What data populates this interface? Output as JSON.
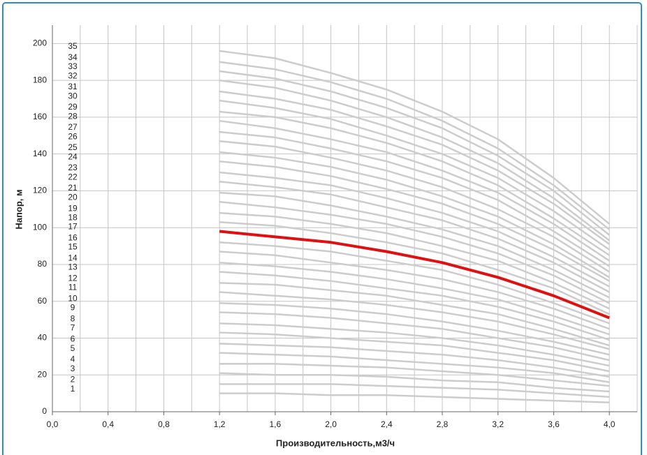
{
  "chart_data": {
    "type": "line",
    "xlabel": "Производительность,м3/ч",
    "ylabel": "Напор, м",
    "x": [
      1.2,
      1.6,
      2.0,
      2.4,
      2.8,
      3.2,
      3.6,
      4.0
    ],
    "xlim": [
      0,
      4.2
    ],
    "ylim": [
      0,
      210
    ],
    "xticks": [
      {
        "value": 0,
        "label": "0,0"
      },
      {
        "value": 0.4,
        "label": "0,4"
      },
      {
        "value": 0.8,
        "label": "0,8"
      },
      {
        "value": 1.2,
        "label": "1,2"
      },
      {
        "value": 1.6,
        "label": "1,6"
      },
      {
        "value": 2.0,
        "label": "2,0"
      },
      {
        "value": 2.4,
        "label": "2,4"
      },
      {
        "value": 2.8,
        "label": "2,8"
      },
      {
        "value": 3.2,
        "label": "3,2"
      },
      {
        "value": 3.6,
        "label": "3,6"
      },
      {
        "value": 4.0,
        "label": "4,0"
      }
    ],
    "xminorticks": [
      0.2,
      0.6,
      1.0,
      1.4,
      1.8,
      2.2,
      2.6,
      3.0,
      3.4,
      3.8,
      4.2
    ],
    "yticks": [
      0,
      20,
      40,
      60,
      80,
      100,
      120,
      140,
      160,
      180,
      200
    ],
    "grid": true,
    "series": [
      {
        "name": "1",
        "color": "#cccccc",
        "values": [
          10,
          10,
          9,
          9,
          8,
          7,
          6,
          5
        ]
      },
      {
        "name": "2",
        "color": "#cccccc",
        "values": [
          15,
          15,
          15,
          14,
          13,
          12,
          10,
          8
        ]
      },
      {
        "name": "3",
        "color": "#cccccc",
        "values": [
          21,
          20,
          20,
          19,
          17,
          16,
          13,
          11
        ]
      },
      {
        "name": "4",
        "color": "#cccccc",
        "values": [
          26,
          26,
          25,
          24,
          22,
          20,
          17,
          14
        ]
      },
      {
        "name": "5",
        "color": "#cccccc",
        "values": [
          32,
          31,
          30,
          28,
          26,
          24,
          21,
          16
        ]
      },
      {
        "name": "6",
        "color": "#cccccc",
        "values": [
          37,
          36,
          35,
          33,
          31,
          28,
          24,
          19
        ]
      },
      {
        "name": "7",
        "color": "#cccccc",
        "values": [
          43,
          42,
          40,
          38,
          36,
          32,
          28,
          22
        ]
      },
      {
        "name": "8",
        "color": "#cccccc",
        "values": [
          48,
          47,
          45,
          43,
          40,
          36,
          31,
          25
        ]
      },
      {
        "name": "9",
        "color": "#cccccc",
        "values": [
          54,
          53,
          51,
          48,
          45,
          40,
          35,
          28
        ]
      },
      {
        "name": "10",
        "color": "#cccccc",
        "values": [
          59,
          58,
          56,
          53,
          49,
          44,
          38,
          31
        ]
      },
      {
        "name": "11",
        "color": "#cccccc",
        "values": [
          65,
          63,
          61,
          58,
          54,
          49,
          42,
          34
        ]
      },
      {
        "name": "12",
        "color": "#cccccc",
        "values": [
          70,
          69,
          66,
          63,
          58,
          53,
          45,
          36
        ]
      },
      {
        "name": "13",
        "color": "#cccccc",
        "values": [
          76,
          74,
          71,
          67,
          63,
          57,
          49,
          39
        ]
      },
      {
        "name": "14",
        "color": "#cccccc",
        "values": [
          81,
          79,
          76,
          72,
          67,
          61,
          52,
          42
        ]
      },
      {
        "name": "15",
        "color": "#cccccc",
        "values": [
          87,
          85,
          81,
          77,
          72,
          65,
          56,
          45
        ]
      },
      {
        "name": "16",
        "color": "#cccccc",
        "values": [
          92,
          90,
          87,
          82,
          77,
          69,
          59,
          48
        ]
      },
      {
        "name": "17",
        "color": "#e01010",
        "highlighted": true,
        "values": [
          98,
          95,
          92,
          87,
          81,
          73,
          63,
          51
        ]
      },
      {
        "name": "18",
        "color": "#cccccc",
        "values": [
          103,
          101,
          97,
          92,
          86,
          77,
          67,
          53
        ]
      },
      {
        "name": "19",
        "color": "#cccccc",
        "values": [
          108,
          106,
          102,
          97,
          90,
          82,
          70,
          56
        ]
      },
      {
        "name": "20",
        "color": "#cccccc",
        "values": [
          114,
          111,
          107,
          102,
          95,
          86,
          74,
          59
        ]
      },
      {
        "name": "21",
        "color": "#cccccc",
        "values": [
          119,
          117,
          112,
          106,
          99,
          90,
          77,
          62
        ]
      },
      {
        "name": "22",
        "color": "#cccccc",
        "values": [
          125,
          122,
          118,
          111,
          104,
          94,
          81,
          65
        ]
      },
      {
        "name": "23",
        "color": "#cccccc",
        "values": [
          130,
          127,
          123,
          116,
          108,
          98,
          84,
          68
        ]
      },
      {
        "name": "24",
        "color": "#cccccc",
        "values": [
          136,
          133,
          128,
          121,
          113,
          102,
          88,
          71
        ]
      },
      {
        "name": "25",
        "color": "#cccccc",
        "values": [
          141,
          138,
          133,
          126,
          117,
          106,
          91,
          73
        ]
      },
      {
        "name": "26",
        "color": "#cccccc",
        "values": [
          147,
          144,
          138,
          131,
          122,
          110,
          95,
          76
        ]
      },
      {
        "name": "27",
        "color": "#cccccc",
        "values": [
          152,
          149,
          143,
          136,
          127,
          115,
          98,
          79
        ]
      },
      {
        "name": "28",
        "color": "#cccccc",
        "values": [
          158,
          154,
          148,
          141,
          131,
          119,
          102,
          82
        ]
      },
      {
        "name": "29",
        "color": "#cccccc",
        "values": [
          163,
          160,
          154,
          146,
          136,
          123,
          105,
          85
        ]
      },
      {
        "name": "30",
        "color": "#cccccc",
        "values": [
          169,
          165,
          159,
          150,
          140,
          127,
          109,
          88
        ]
      },
      {
        "name": "31",
        "color": "#cccccc",
        "values": [
          174,
          170,
          164,
          155,
          145,
          131,
          113,
          91
        ]
      },
      {
        "name": "32",
        "color": "#cccccc",
        "values": [
          180,
          176,
          169,
          160,
          149,
          135,
          116,
          93
        ]
      },
      {
        "name": "33",
        "color": "#cccccc",
        "values": [
          185,
          181,
          174,
          165,
          154,
          139,
          120,
          96
        ]
      },
      {
        "name": "34",
        "color": "#cccccc",
        "values": [
          190,
          186,
          179,
          170,
          158,
          143,
          123,
          99
        ]
      },
      {
        "name": "35",
        "color": "#cccccc",
        "values": [
          196,
          192,
          184,
          175,
          163,
          148,
          127,
          102
        ]
      }
    ]
  }
}
